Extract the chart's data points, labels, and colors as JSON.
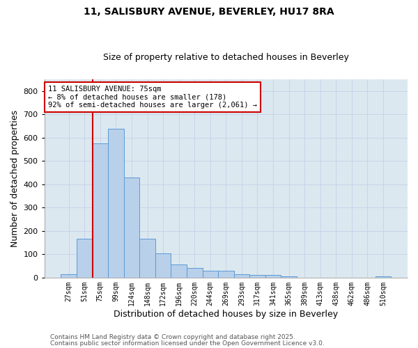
{
  "title1": "11, SALISBURY AVENUE, BEVERLEY, HU17 8RA",
  "title2": "Size of property relative to detached houses in Beverley",
  "xlabel": "Distribution of detached houses by size in Beverley",
  "ylabel": "Number of detached properties",
  "categories": [
    "27sqm",
    "51sqm",
    "75sqm",
    "99sqm",
    "124sqm",
    "148sqm",
    "172sqm",
    "196sqm",
    "220sqm",
    "244sqm",
    "269sqm",
    "293sqm",
    "317sqm",
    "341sqm",
    "365sqm",
    "389sqm",
    "413sqm",
    "438sqm",
    "462sqm",
    "486sqm",
    "510sqm"
  ],
  "values": [
    15,
    168,
    575,
    640,
    430,
    168,
    103,
    57,
    42,
    30,
    30,
    14,
    10,
    10,
    6,
    0,
    0,
    0,
    0,
    0,
    6
  ],
  "bar_color": "#b8d0ea",
  "bar_edge_color": "#5b9bd5",
  "bar_edge_width": 0.7,
  "red_line_index": 2,
  "red_line_color": "#cc0000",
  "annotation_line1": "11 SALISBURY AVENUE: 75sqm",
  "annotation_line2": "← 8% of detached houses are smaller (178)",
  "annotation_line3": "92% of semi-detached houses are larger (2,061) →",
  "annotation_box_color": "#ffffff",
  "annotation_box_edge_color": "#cc0000",
  "ylim": [
    0,
    850
  ],
  "yticks": [
    0,
    100,
    200,
    300,
    400,
    500,
    600,
    700,
    800
  ],
  "grid_color": "#c8d4e8",
  "bg_color": "#dce8f0",
  "footer1": "Contains HM Land Registry data © Crown copyright and database right 2025.",
  "footer2": "Contains public sector information licensed under the Open Government Licence v3.0.",
  "title_fontsize": 10,
  "subtitle_fontsize": 9,
  "annotation_fontsize": 7.5,
  "footer_fontsize": 6.5
}
